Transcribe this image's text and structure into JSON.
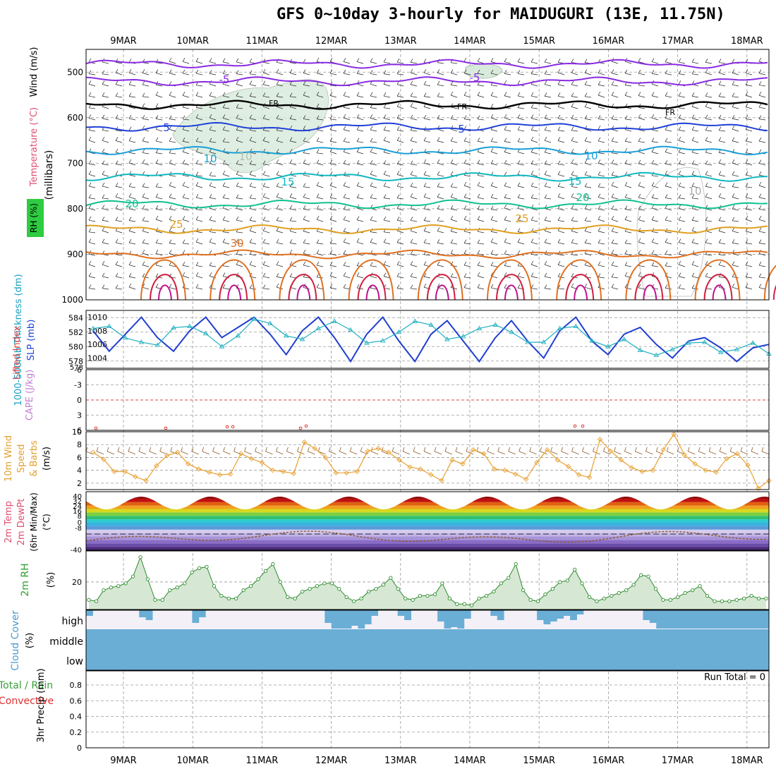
{
  "title": "GFS 0~10day 3-hourly for MAIDUGURI (13E, 11.75N)",
  "dates": [
    "9MAR",
    "10MAR",
    "11MAR",
    "12MAR",
    "13MAR",
    "14MAR",
    "15MAR",
    "16MAR",
    "17MAR",
    "18MAR"
  ],
  "colors": {
    "frame": "#000000",
    "grid": "#9a9a9a",
    "cloud": "#6aaed6",
    "rh_fill": "#d6e8d4",
    "rh_line": "#2e8b2e",
    "slp": "#1f3fd0",
    "thickness": "#20b0c0",
    "wind": "#e8a030",
    "li": "#e03030",
    "dewpt": "#8b5a2b"
  },
  "chart_data": [
    {
      "type": "contour",
      "name": "upper",
      "ylabel_parts": [
        "Wind (m/s)",
        "Temperature (°C)",
        "RH (%)"
      ],
      "ylabel": "(millibars)",
      "yticks": [
        500,
        600,
        700,
        800,
        900,
        1000
      ],
      "ylim": [
        450,
        1000
      ],
      "isotherm_labels": [
        "-5",
        "-5",
        "FR",
        "FR",
        "FR",
        "5",
        "5",
        "10",
        "10",
        "15",
        "15",
        "20",
        "20",
        "25",
        "25",
        "30",
        "10",
        "10"
      ],
      "isotherms": [
        {
          "value": -10,
          "color": "#8a2be2",
          "p": 482
        },
        {
          "value": -5,
          "color": "#8a2be2",
          "p": 520
        },
        {
          "value": 0,
          "color": "#000000",
          "p": 572
        },
        {
          "value": 5,
          "color": "#1f40d8",
          "p": 620
        },
        {
          "value": 10,
          "color": "#1aa0d8",
          "p": 672
        },
        {
          "value": 15,
          "color": "#10b8c0",
          "p": 730
        },
        {
          "value": 20,
          "color": "#10c090",
          "p": 790
        },
        {
          "value": 25,
          "color": "#e0a020",
          "p": 845
        },
        {
          "value": 30,
          "color": "#e07020",
          "p": 900
        }
      ]
    },
    {
      "type": "line",
      "name": "slp-thickness",
      "ylabel_left": "1000-500mb Thickness (dm)",
      "ylabel_right": "SLP (mb)",
      "yticks_left": [
        578,
        580,
        582,
        584
      ],
      "yticks_right": [
        1004,
        1006,
        1008,
        1010
      ],
      "series": [
        {
          "name": "SLP",
          "values": [
            1008.0,
            1005.0,
            1007.5,
            1010.0,
            1007.0,
            1005.0,
            1008.0,
            1010.0,
            1007.0,
            1008.5,
            1010.0,
            1007.5,
            1004.5,
            1008.0,
            1010.0,
            1007.0,
            1003.5,
            1007.5,
            1010.0,
            1006.5,
            1003.5,
            1007.5,
            1009.5,
            1006.5,
            1003.5,
            1007.0,
            1009.5,
            1006.5,
            1004.0,
            1008.0,
            1010.0,
            1006.5,
            1004.5,
            1007.5,
            1008.5,
            1006.0,
            1004.0,
            1006.5,
            1007.0,
            1005.5,
            1003.5,
            1005.5,
            1006.0
          ]
        },
        {
          "name": "Thickness",
          "values": [
            582.5,
            582.8,
            581.2,
            580.6,
            580.2,
            582.6,
            582.8,
            581.8,
            580.0,
            581.5,
            583.8,
            583.2,
            581.5,
            581.0,
            582.5,
            583.5,
            582.3,
            580.5,
            580.8,
            582.0,
            583.5,
            583.0,
            581.0,
            581.4,
            582.5,
            583.0,
            582.0,
            580.6,
            580.6,
            582.5,
            582.8,
            580.8,
            580.0,
            581.0,
            579.5,
            578.8,
            579.6,
            580.5,
            580.6,
            579.2,
            579.6,
            580.5,
            579.0
          ]
        }
      ]
    },
    {
      "type": "line",
      "name": "li-cape",
      "ylabel_parts": [
        "Lifted Index",
        "CAPE (J/kg)"
      ],
      "yticks": [
        "-6",
        "-3",
        "0",
        "3",
        "6"
      ],
      "ylim": [
        -6,
        6
      ],
      "series": [
        {
          "name": "Lifted Index",
          "values": []
        }
      ]
    },
    {
      "type": "line",
      "name": "wind10m",
      "ylabel": "10m Wind Speed & Barbs (m/s)",
      "yticks": [
        2,
        4,
        6,
        8,
        10
      ],
      "ylim": [
        1,
        10
      ],
      "series": [
        {
          "name": "Wind speed",
          "values": [
            6.8,
            5.7,
            3.8,
            3.8,
            3.0,
            2.4,
            4.7,
            6.3,
            6.8,
            5.0,
            4.2,
            3.7,
            3.3,
            3.4,
            6.6,
            5.8,
            5.2,
            4.0,
            3.8,
            3.5,
            8.4,
            7.4,
            6.0,
            3.6,
            3.6,
            3.8,
            7.0,
            7.4,
            6.8,
            5.6,
            4.5,
            4.2,
            3.3,
            2.4,
            5.6,
            5.0,
            7.2,
            6.6,
            4.2,
            4.0,
            3.4,
            2.6,
            5.2,
            7.2,
            5.6,
            4.6,
            3.3,
            2.9,
            8.8,
            7.0,
            5.6,
            4.4,
            3.8,
            4.0,
            7.2,
            9.6,
            6.4,
            5.0,
            4.0,
            3.7,
            5.8,
            6.6,
            4.8,
            1.2,
            2.4
          ]
        }
      ]
    },
    {
      "type": "area",
      "name": "temp2m",
      "ylabel": "2m Temp 2m DewPt (6hr Min/Max) (°C)",
      "yticks": [
        "40",
        "32",
        "24",
        "16",
        "8",
        "0",
        "-8",
        "-40"
      ]
    },
    {
      "type": "area",
      "name": "rh2m",
      "ylabel": "2m RH",
      "ylabel_unit": "(%)",
      "yticks": [
        "20"
      ],
      "series": [
        {
          "name": "RH",
          "values": [
            7,
            6,
            14,
            16,
            17,
            19,
            24,
            38,
            22,
            7,
            7,
            14,
            16,
            19,
            27,
            30,
            31,
            17,
            10,
            8,
            8,
            14,
            17,
            22,
            28,
            33,
            20,
            9,
            8,
            13,
            15,
            17,
            19,
            19,
            15,
            9,
            6,
            8,
            13,
            15,
            18,
            23,
            15,
            8,
            7,
            10,
            10,
            11,
            19,
            8,
            4,
            4,
            3,
            8,
            10,
            13,
            19,
            23,
            33,
            14,
            7,
            6,
            11,
            15,
            20,
            21,
            29,
            19,
            9,
            6,
            8,
            10,
            12,
            14,
            18,
            25,
            24,
            15,
            7,
            7,
            9,
            12,
            14,
            17,
            10,
            6,
            6,
            6,
            7,
            8,
            10,
            8,
            8
          ]
        }
      ]
    },
    {
      "type": "area",
      "name": "cloud",
      "ylabel": "Cloud Cover (%)",
      "category_labels": [
        "high",
        "middle",
        "low"
      ]
    },
    {
      "type": "bar",
      "name": "precip",
      "ylabel": "3hr Precip (mm)",
      "legend": [
        "Total / Rain",
        "Convective"
      ],
      "yticks": [
        "0",
        "0.2",
        "0.4",
        "0.6",
        "0.8"
      ],
      "ylim": [
        0,
        1
      ],
      "run_total_label": "Run Total = 0"
    }
  ]
}
